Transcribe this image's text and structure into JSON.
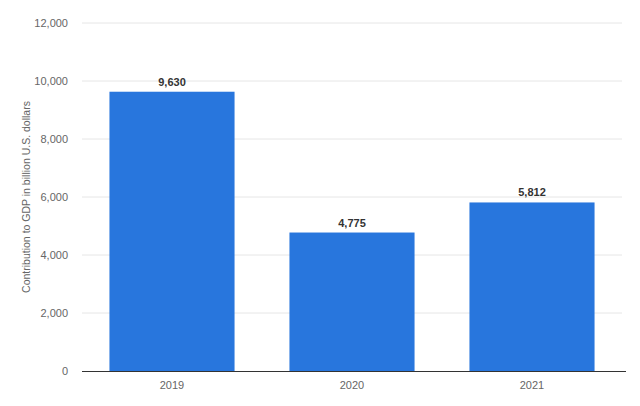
{
  "chart_data": {
    "type": "bar",
    "y_label": "Contribution to GDP in billion U.S. dollars",
    "categories": [
      "2019",
      "2020",
      "2021"
    ],
    "values": [
      9630,
      4775,
      5812
    ],
    "value_labels": [
      "9,630",
      "4,775",
      "5,812"
    ],
    "color": "#2876dd",
    "ylim": [
      0,
      12000
    ],
    "yticks": [
      0,
      {
        "value": 2000,
        "label": "2,000"
      },
      {
        "value": 4000,
        "label": "4,000"
      },
      {
        "value": 6000,
        "label": "6,000"
      },
      {
        "value": 8000,
        "label": "8,000"
      },
      {
        "value": 10000,
        "label": "10,000"
      },
      {
        "value": 12000,
        "label": "12,000"
      }
    ],
    "grid": true,
    "data_labels": true
  }
}
